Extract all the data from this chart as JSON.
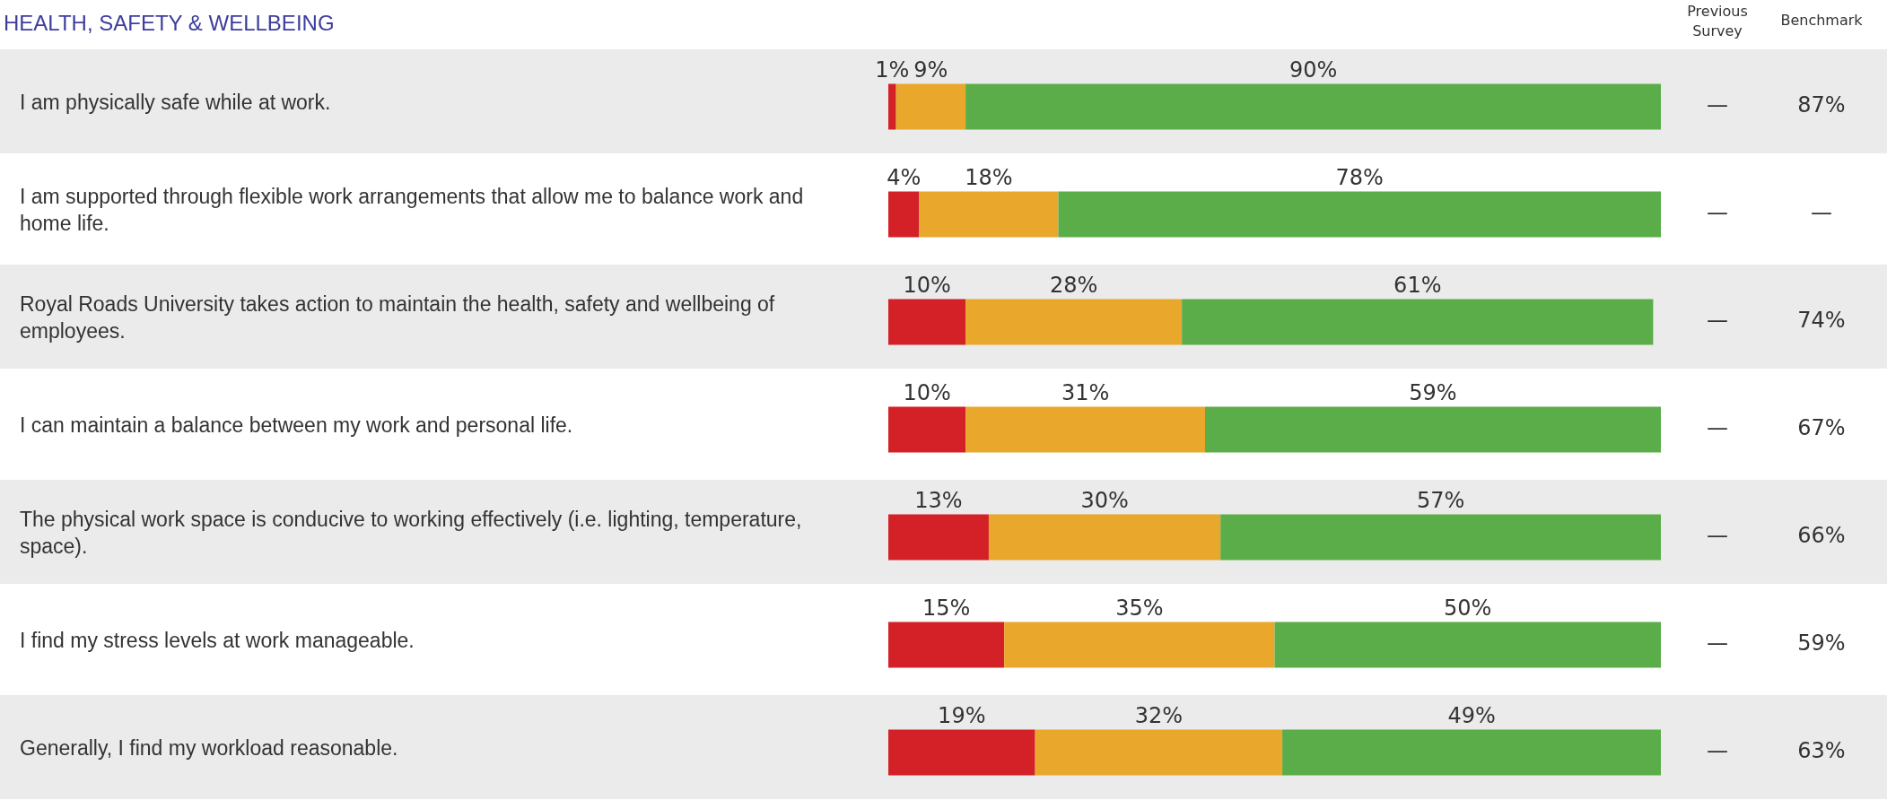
{
  "chart_data": {
    "type": "bar",
    "orientation": "horizontal",
    "stacked": true,
    "title": "HEALTH, SAFETY & WELLBEING",
    "categories": [
      "I am physically safe while at work.",
      "I am supported through flexible work arrangements that allow me to balance work and home life.",
      "Royal Roads University takes action to maintain the health, safety and wellbeing of employees.",
      "I can maintain a balance between my work and personal life.",
      "The physical work space is conducive to working effectively (i.e. lighting, temperature, space).",
      "I find my stress levels at work manageable.",
      "Generally, I find my workload reasonable."
    ],
    "series": [
      {
        "color": "#d42027",
        "values": [
          1,
          4,
          10,
          10,
          13,
          15,
          19
        ],
        "value_labels": [
          "1%",
          "4%",
          "10%",
          "10%",
          "13%",
          "15%",
          "19%"
        ]
      },
      {
        "color": "#e9a82b",
        "values": [
          9,
          18,
          28,
          31,
          30,
          35,
          32
        ],
        "value_labels": [
          "9%",
          "18%",
          "28%",
          "31%",
          "30%",
          "35%",
          "32%"
        ]
      },
      {
        "color": "#5aad48",
        "values": [
          90,
          78,
          61,
          59,
          57,
          50,
          49
        ],
        "value_labels": [
          "90%",
          "78%",
          "61%",
          "59%",
          "57%",
          "50%",
          "49%"
        ]
      }
    ],
    "annotations": [
      "Previous Survey",
      "Benchmark",
      "—",
      "87%",
      "—",
      "—",
      "—",
      "74%",
      "—",
      "67%",
      "—",
      "66%",
      "—",
      "59%",
      "—",
      "63%"
    ]
  }
}
